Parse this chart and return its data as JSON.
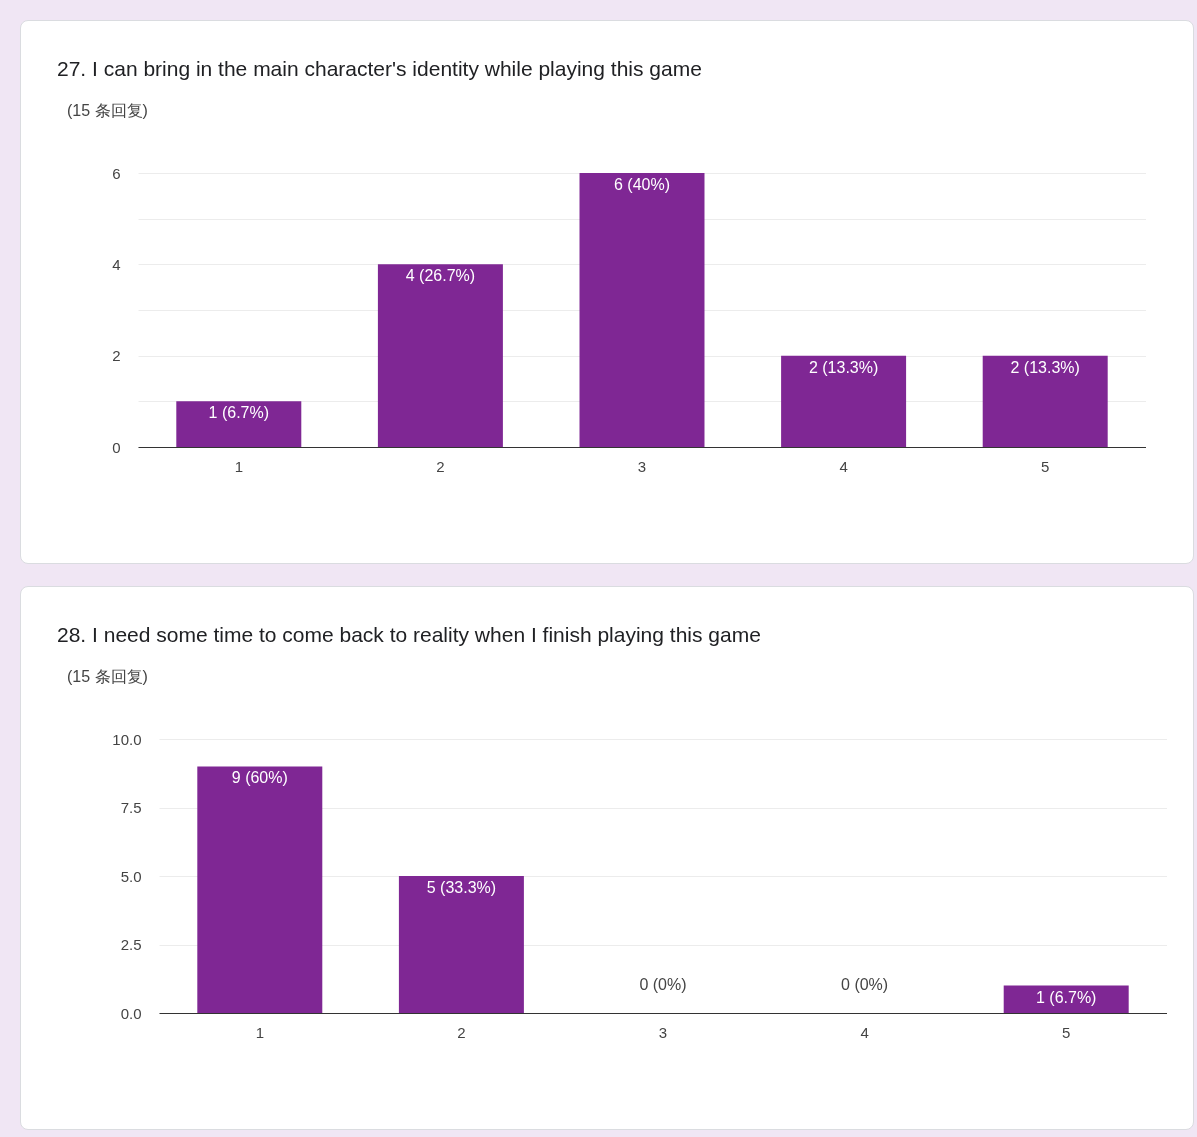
{
  "chart_data": [
    {
      "type": "bar",
      "title": "27. I can bring in the main character's identity while playing this game",
      "subtitle": "(15 条回复)",
      "categories": [
        "1",
        "2",
        "3",
        "4",
        "5"
      ],
      "values": [
        1,
        4,
        6,
        2,
        2
      ],
      "color": "#7f2794",
      "value_labels": [
        "1 (6.7%)",
        "4 (26.7%)",
        "6 (40%)",
        "2 (13.3%)",
        "2 (13.3%)"
      ],
      "ylim": [
        0,
        6
      ],
      "yticks": [
        0,
        {
          "value": 1,
          "label": null
        },
        2,
        {
          "value": 3,
          "label": null
        },
        4,
        {
          "value": 5,
          "label": null
        },
        6
      ],
      "grid": "y"
    },
    {
      "type": "bar",
      "title": "28. I need some time to come back to reality when I finish playing this game",
      "subtitle": "(15 条回复)",
      "categories": [
        "1",
        "2",
        "3",
        "4",
        "5"
      ],
      "values": [
        9,
        5,
        0,
        0,
        1
      ],
      "color": "#7f2794",
      "value_labels": [
        "9 (60%)",
        "5 (33.3%)",
        "0 (0%)",
        "0 (0%)",
        "1 (6.7%)"
      ],
      "ylim": [
        0,
        10
      ],
      "yticks": [
        {
          "value": 0,
          "label": "0.0"
        },
        {
          "value": 2.5,
          "label": "2.5"
        },
        {
          "value": 5,
          "label": "5.0"
        },
        {
          "value": 7.5,
          "label": "7.5"
        },
        {
          "value": 10,
          "label": "10.0"
        }
      ],
      "grid": "y"
    }
  ]
}
